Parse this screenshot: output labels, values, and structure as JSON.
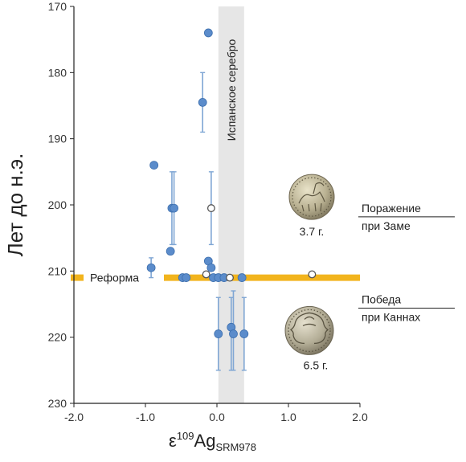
{
  "chart_data": {
    "type": "scatter",
    "xlabel_main": "ε",
    "xlabel_sup": "109",
    "xlabel_el": "Ag",
    "xlabel_sub": "SRM978",
    "ylabel": "Лет до н.э.",
    "xlim": [
      -2.0,
      2.0
    ],
    "ylim": [
      170,
      230
    ],
    "y_inverted": true,
    "xticks": [
      "-2.0",
      "-1.0",
      "0.0",
      "1.0",
      "2.0"
    ],
    "yticks": [
      "170",
      "180",
      "190",
      "200",
      "210",
      "220",
      "230"
    ],
    "grid": false,
    "points": [
      {
        "x": -0.12,
        "y": 174.0,
        "filled": true
      },
      {
        "x": -0.2,
        "y": 184.5,
        "filled": true,
        "err_lo": 180.0,
        "err_hi": 189.0
      },
      {
        "x": -0.88,
        "y": 194.0,
        "filled": true
      },
      {
        "x": -0.63,
        "y": 200.5,
        "filled": true,
        "err_lo": 195.0,
        "err_hi": 206.0
      },
      {
        "x": -0.6,
        "y": 200.5,
        "filled": true,
        "err_lo": 195.0,
        "err_hi": 206.0
      },
      {
        "x": -0.08,
        "y": 200.5,
        "filled": false,
        "err_lo": 195.0,
        "err_hi": 206.0
      },
      {
        "x": -0.65,
        "y": 207.0,
        "filled": true
      },
      {
        "x": -0.92,
        "y": 209.5,
        "filled": true,
        "err_lo": 208.0,
        "err_hi": 211.0
      },
      {
        "x": -0.12,
        "y": 208.5,
        "filled": true
      },
      {
        "x": -0.08,
        "y": 209.5,
        "filled": true
      },
      {
        "x": -0.48,
        "y": 211.0,
        "filled": true
      },
      {
        "x": -0.43,
        "y": 211.0,
        "filled": true
      },
      {
        "x": -0.15,
        "y": 210.5,
        "filled": false
      },
      {
        "x": -0.05,
        "y": 211.0,
        "filled": true
      },
      {
        "x": 0.02,
        "y": 211.0,
        "filled": true
      },
      {
        "x": 0.1,
        "y": 211.0,
        "filled": true
      },
      {
        "x": 0.18,
        "y": 211.0,
        "filled": false
      },
      {
        "x": 0.35,
        "y": 211.0,
        "filled": true
      },
      {
        "x": 1.33,
        "y": 210.5,
        "filled": false
      },
      {
        "x": 0.02,
        "y": 219.5,
        "filled": true,
        "err_lo": 214.0,
        "err_hi": 225.0
      },
      {
        "x": 0.2,
        "y": 218.5,
        "filled": true,
        "err_lo": 214.0,
        "err_hi": 225.0
      },
      {
        "x": 0.23,
        "y": 219.5,
        "filled": true,
        "err_lo": 213.0,
        "err_hi": 225.0
      },
      {
        "x": 0.38,
        "y": 219.5,
        "filled": true,
        "err_lo": 214.0,
        "err_hi": 225.0
      }
    ],
    "spanish_band": {
      "x0": 0.02,
      "x1": 0.38,
      "label": "Испанское серебро"
    },
    "reform_line": {
      "y": 211.0,
      "label": "Реформа"
    },
    "events": [
      {
        "y": 201.8,
        "line1": "Поражение",
        "line2": "при Заме"
      },
      {
        "y": 215.6,
        "line1": "Победа",
        "line2": "при Каннах"
      }
    ],
    "coins": [
      {
        "y": 198.8,
        "label": "3.7 г.",
        "kind": "quadriga-coin-icon"
      },
      {
        "y": 219.0,
        "label": "6.5 г.",
        "kind": "janus-head-coin-icon"
      }
    ]
  },
  "colors": {
    "point_fill": "#5b8ccb",
    "point_stroke": "#3d6fae",
    "error_bar": "#7fa6d4",
    "band": "#e6e6e6",
    "reform": "#f2b41d",
    "axis": "#222222"
  }
}
